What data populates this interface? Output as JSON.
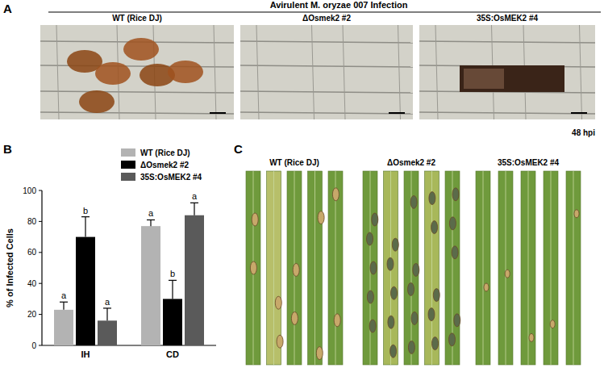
{
  "panel_a": {
    "letter": "A",
    "title": "Avirulent M. oryzae 007 Infection",
    "images": [
      "WT (Rice DJ)",
      "ΔOsmek2 #2",
      "35S:OsMEK2 #4"
    ],
    "time": "48 hpi"
  },
  "chart_data": {
    "type": "bar",
    "letter": "B",
    "y_label": "% of Infected Cells",
    "categories": [
      "IH",
      "CD"
    ],
    "series": [
      {
        "name": "WT (Rice DJ)",
        "color": "#b3b3b3",
        "values": [
          23,
          77
        ],
        "errors": [
          5,
          4
        ],
        "significance": [
          "a",
          "a"
        ]
      },
      {
        "name": "ΔOsmek2 #2",
        "color": "#000000",
        "values": [
          70,
          30
        ],
        "errors": [
          13,
          12
        ],
        "significance": [
          "b",
          "b"
        ]
      },
      {
        "name": "35S:OsMEK2 #4",
        "color": "#5a5a5a",
        "values": [
          16,
          84
        ],
        "errors": [
          8,
          8
        ],
        "significance": [
          "a",
          "a"
        ]
      }
    ],
    "ylim": [
      0,
      100
    ],
    "yticks": [
      0,
      20,
      40,
      60,
      80,
      100
    ],
    "grid": false,
    "legend": "top-right"
  },
  "panel_c": {
    "letter": "C",
    "images": [
      "WT (Rice DJ)",
      "ΔOsmek2 #2",
      "35S:OsMEK2 #4"
    ]
  }
}
